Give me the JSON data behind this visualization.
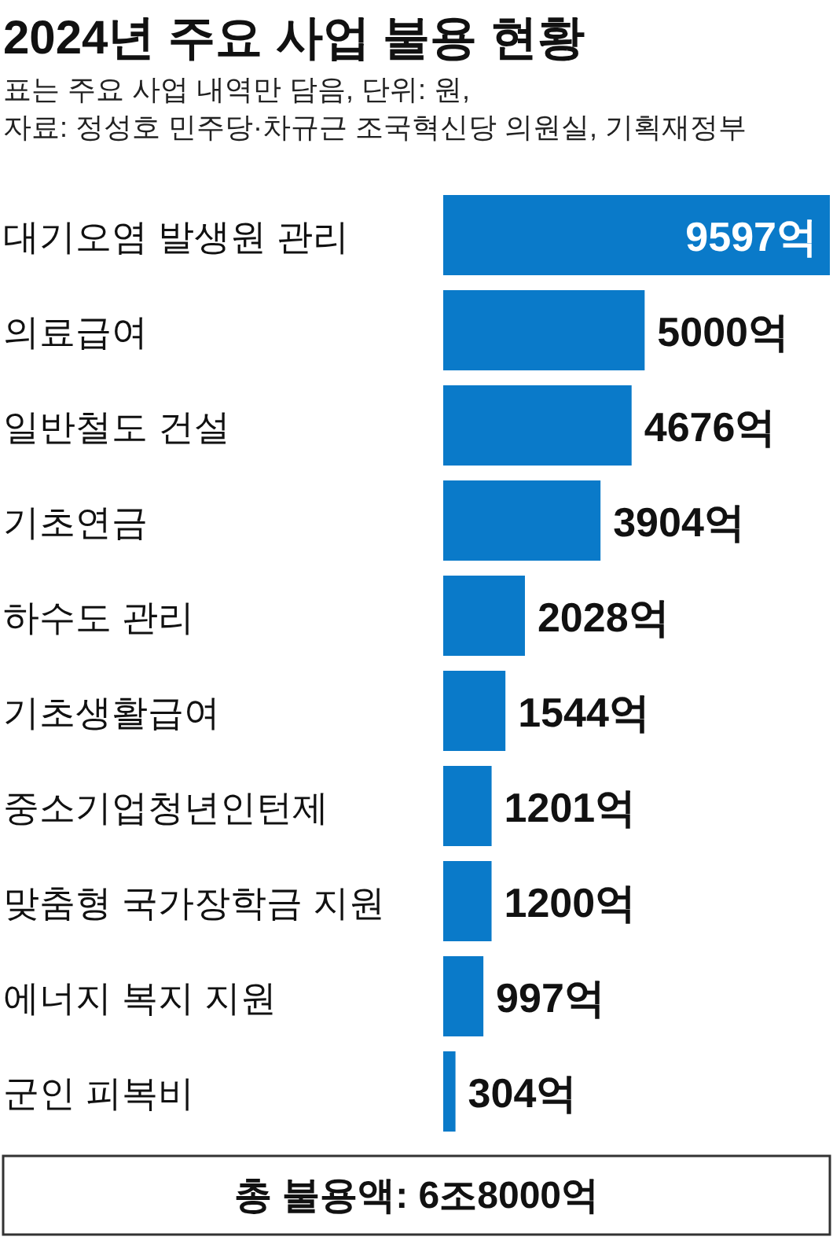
{
  "chart_data": {
    "type": "bar",
    "orientation": "horizontal",
    "title": "2024년 주요 사업 불용 현황",
    "subtitle": "표는 주요 사업 내역만 담음, 단위: 원,\n자료: 정성호 민주당·차규근 조국혁신당 의원실, 기획재정부",
    "categories": [
      "대기오염 발생원 관리",
      "의료급여",
      "일반철도 건설",
      "기초연금",
      "하수도 관리",
      "기초생활급여",
      "중소기업청년인턴제",
      "맞춤형 국가장학금 지원",
      "에너지 복지 지원",
      "군인 피복비"
    ],
    "values": [
      9597,
      5000,
      4676,
      3904,
      2028,
      1544,
      1201,
      1200,
      997,
      304
    ],
    "value_labels": [
      "9597억",
      "5000억",
      "4676억",
      "3904억",
      "2028억",
      "1544억",
      "1201억",
      "1200억",
      "997억",
      "304억"
    ],
    "color": "#0a7ac9",
    "annotations": [
      "총 불용액: 6조8000억"
    ]
  }
}
